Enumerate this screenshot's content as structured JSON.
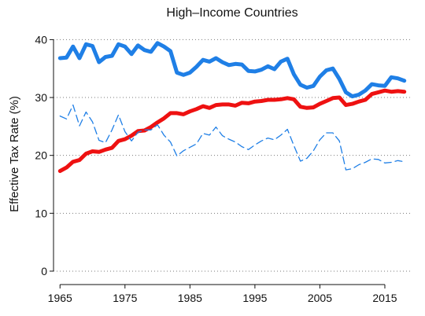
{
  "chart_data": {
    "type": "line",
    "title": "High–Income Countries",
    "xlabel": "",
    "ylabel": "Effective Tax Rate (%)",
    "xlim": [
      1964,
      2019
    ],
    "ylim": [
      -1.5,
      42.5
    ],
    "xticks": [
      1965,
      1975,
      1985,
      1995,
      2005,
      2015
    ],
    "yticks": [
      0,
      10,
      20,
      30,
      40
    ],
    "grid": true,
    "legend": "none",
    "x": [
      1965,
      1966,
      1967,
      1968,
      1969,
      1970,
      1971,
      1972,
      1973,
      1974,
      1975,
      1976,
      1977,
      1978,
      1979,
      1980,
      1981,
      1982,
      1983,
      1984,
      1985,
      1986,
      1987,
      1988,
      1989,
      1990,
      1991,
      1992,
      1993,
      1994,
      1995,
      1996,
      1997,
      1998,
      1999,
      2000,
      2001,
      2002,
      2003,
      2004,
      2005,
      2006,
      2007,
      2008,
      2009,
      2010,
      2011,
      2012,
      2013,
      2014,
      2015,
      2016,
      2017,
      2018
    ],
    "series": [
      {
        "color": "#1f7fe6",
        "style": "solid",
        "width": "thick",
        "values": [
          36.8,
          36.9,
          38.8,
          36.8,
          39.2,
          38.9,
          36.1,
          37.0,
          37.2,
          39.2,
          38.8,
          37.5,
          39.0,
          38.2,
          37.9,
          39.4,
          38.8,
          38.0,
          34.3,
          33.9,
          34.3,
          35.3,
          36.5,
          36.2,
          36.8,
          36.1,
          35.6,
          35.8,
          35.7,
          34.6,
          34.5,
          34.8,
          35.4,
          34.9,
          36.2,
          36.7,
          34.0,
          32.2,
          31.7,
          32.0,
          33.6,
          34.7,
          35.0,
          33.2,
          30.9,
          30.2,
          30.5,
          31.2,
          32.3,
          32.1,
          32.0,
          33.5,
          33.3,
          32.9
        ]
      },
      {
        "color": "#ee1111",
        "style": "solid",
        "width": "thick",
        "values": [
          17.3,
          17.9,
          18.9,
          19.2,
          20.3,
          20.7,
          20.6,
          21.0,
          21.3,
          22.5,
          22.8,
          23.4,
          24.2,
          24.3,
          24.9,
          25.7,
          26.4,
          27.3,
          27.3,
          27.1,
          27.6,
          28.0,
          28.5,
          28.2,
          28.7,
          28.8,
          28.8,
          28.6,
          29.1,
          29.0,
          29.3,
          29.4,
          29.6,
          29.6,
          29.7,
          29.9,
          29.7,
          28.4,
          28.2,
          28.3,
          28.9,
          29.4,
          29.9,
          30.0,
          28.7,
          28.9,
          29.3,
          29.6,
          30.6,
          30.9,
          31.2,
          31.0,
          31.1,
          31.0
        ]
      },
      {
        "color": "#1f7fe6",
        "style": "dashed",
        "width": "thin",
        "values": [
          26.8,
          26.3,
          28.7,
          25.1,
          27.5,
          25.8,
          22.6,
          22.2,
          24.4,
          27.0,
          24.1,
          22.5,
          24.0,
          24.4,
          24.4,
          25.3,
          23.5,
          22.3,
          19.9,
          20.8,
          21.4,
          22.0,
          23.8,
          23.5,
          24.9,
          23.4,
          22.8,
          22.3,
          21.5,
          21.0,
          21.8,
          22.5,
          23.0,
          22.7,
          23.5,
          24.5,
          21.7,
          19.0,
          19.5,
          20.8,
          22.7,
          23.9,
          23.9,
          22.5,
          17.5,
          17.7,
          18.4,
          18.8,
          19.4,
          19.3,
          18.7,
          18.8,
          19.1,
          18.9
        ]
      }
    ]
  }
}
